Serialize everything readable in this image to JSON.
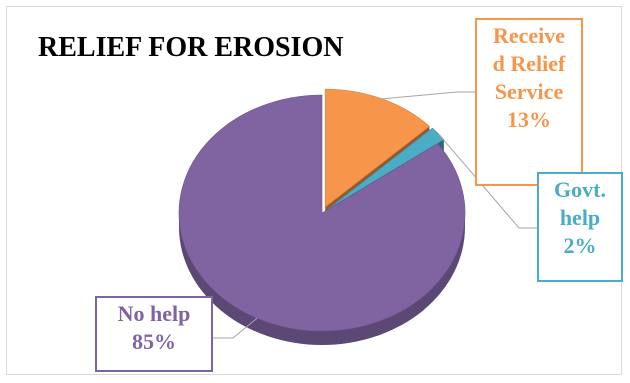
{
  "chart_data": {
    "type": "pie",
    "title": "RELIEF FOR EROSION",
    "labels": [
      "Received Relief Service",
      "Govt. help",
      "No help"
    ],
    "values": [
      13,
      2,
      85
    ],
    "units": "%",
    "display_labels": [
      "Receive\nd Relief\nService\n13%",
      "Govt.\nhelp\n2%",
      "No help\n85%"
    ],
    "colors": [
      "#f7954a",
      "#4bacc6",
      "#8064a2"
    ],
    "style": "3d-exploded"
  }
}
